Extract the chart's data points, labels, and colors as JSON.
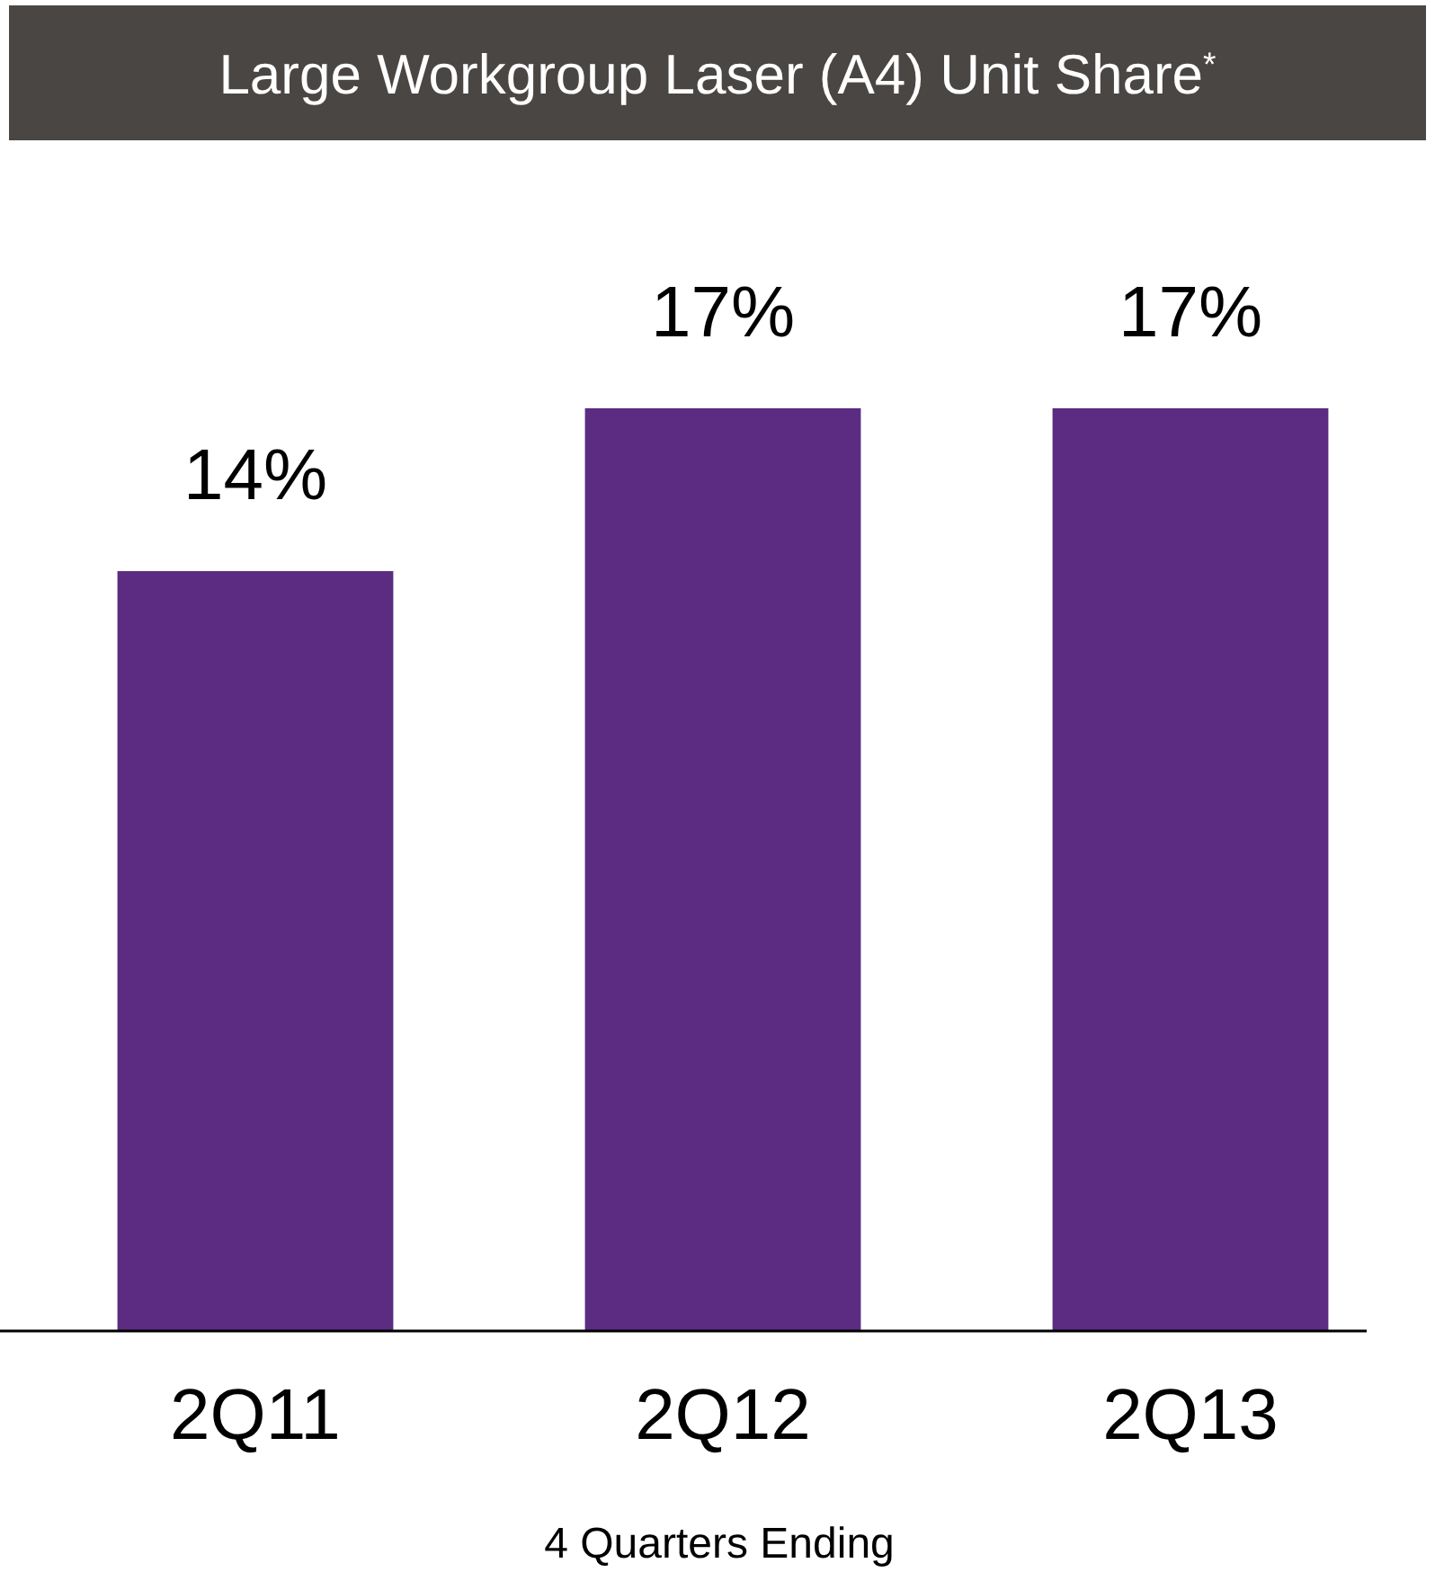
{
  "chart_data": {
    "type": "bar",
    "title": "Large Workgroup Laser (A4) Unit Share$^{*}$",
    "xlabel": "4 Quarters Ending",
    "categories": [
      "2Q11",
      "2Q12",
      "2Q13"
    ],
    "values": [
      14,
      17,
      17
    ],
    "value_labels": [
      "14%",
      "17%",
      "17%"
    ],
    "color": "#5b2c82"
  }
}
